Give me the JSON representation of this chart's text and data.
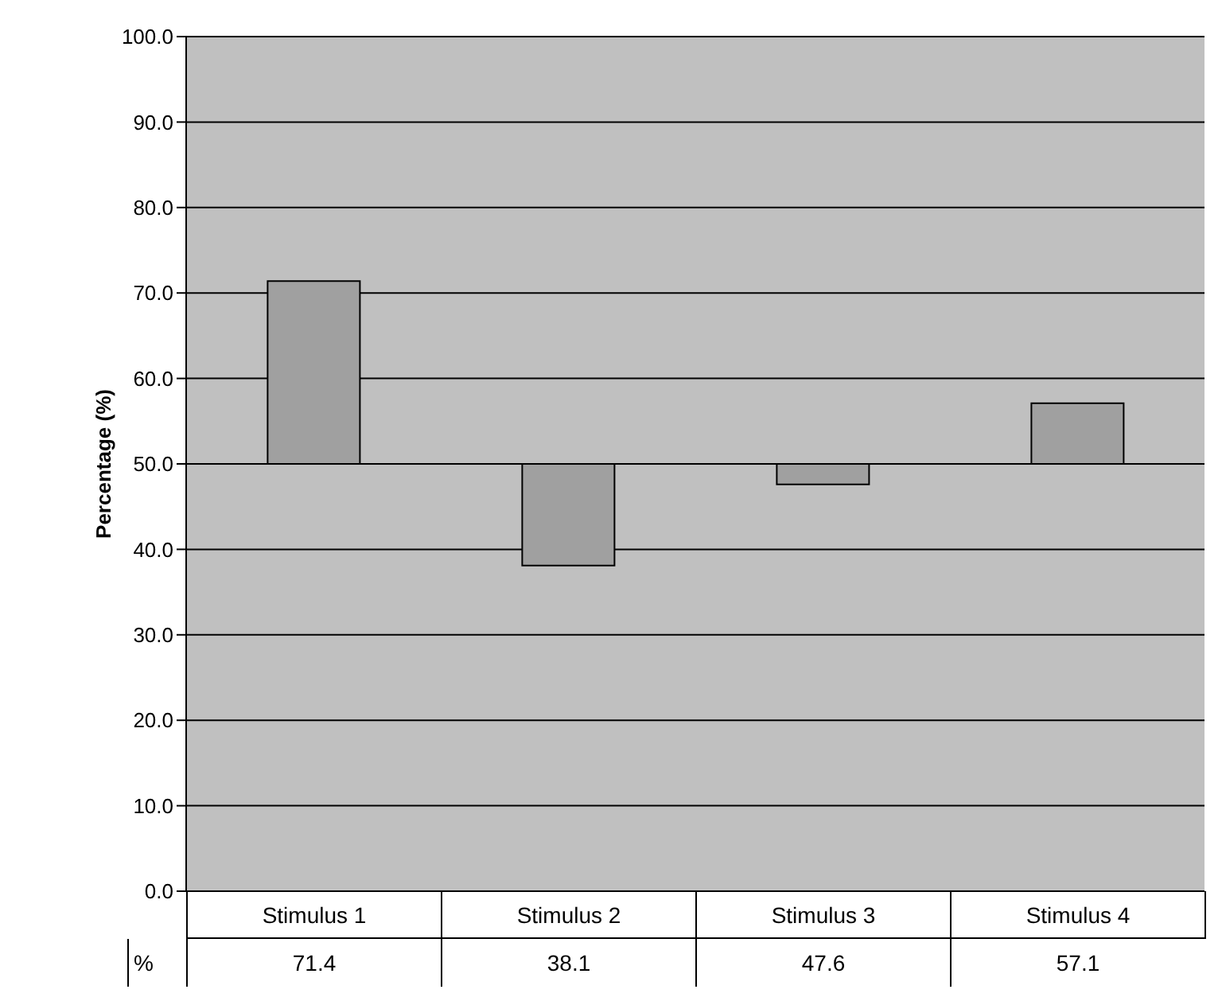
{
  "chart_data": {
    "type": "bar",
    "ylabel": "Percentage (%)",
    "categories": [
      "Stimulus 1",
      "Stimulus 2",
      "Stimulus 3",
      "Stimulus 4"
    ],
    "base": [
      50,
      50,
      50,
      50
    ],
    "values": [
      21.4,
      -11.9,
      -2.4,
      7.1
    ],
    "value_labels": [
      "71.4",
      "38.1",
      "47.6",
      "57.1"
    ],
    "color": "#a0a0a0",
    "ylim": [
      0,
      100
    ],
    "yticks": [
      {
        "value": 0,
        "label": "0.0"
      },
      {
        "value": 10,
        "label": "10.0"
      },
      {
        "value": 20,
        "label": "20.0"
      },
      {
        "value": 30,
        "label": "30.0"
      },
      {
        "value": 40,
        "label": "40.0"
      },
      {
        "value": 50,
        "label": "50.0"
      },
      {
        "value": 60,
        "label": "60.0"
      },
      {
        "value": 70,
        "label": "70.0"
      },
      {
        "value": 80,
        "label": "80.0"
      },
      {
        "value": 90,
        "label": "90.0"
      },
      {
        "value": 100,
        "label": "100.0"
      }
    ],
    "grid": "y",
    "annotations": [
      "%"
    ]
  }
}
